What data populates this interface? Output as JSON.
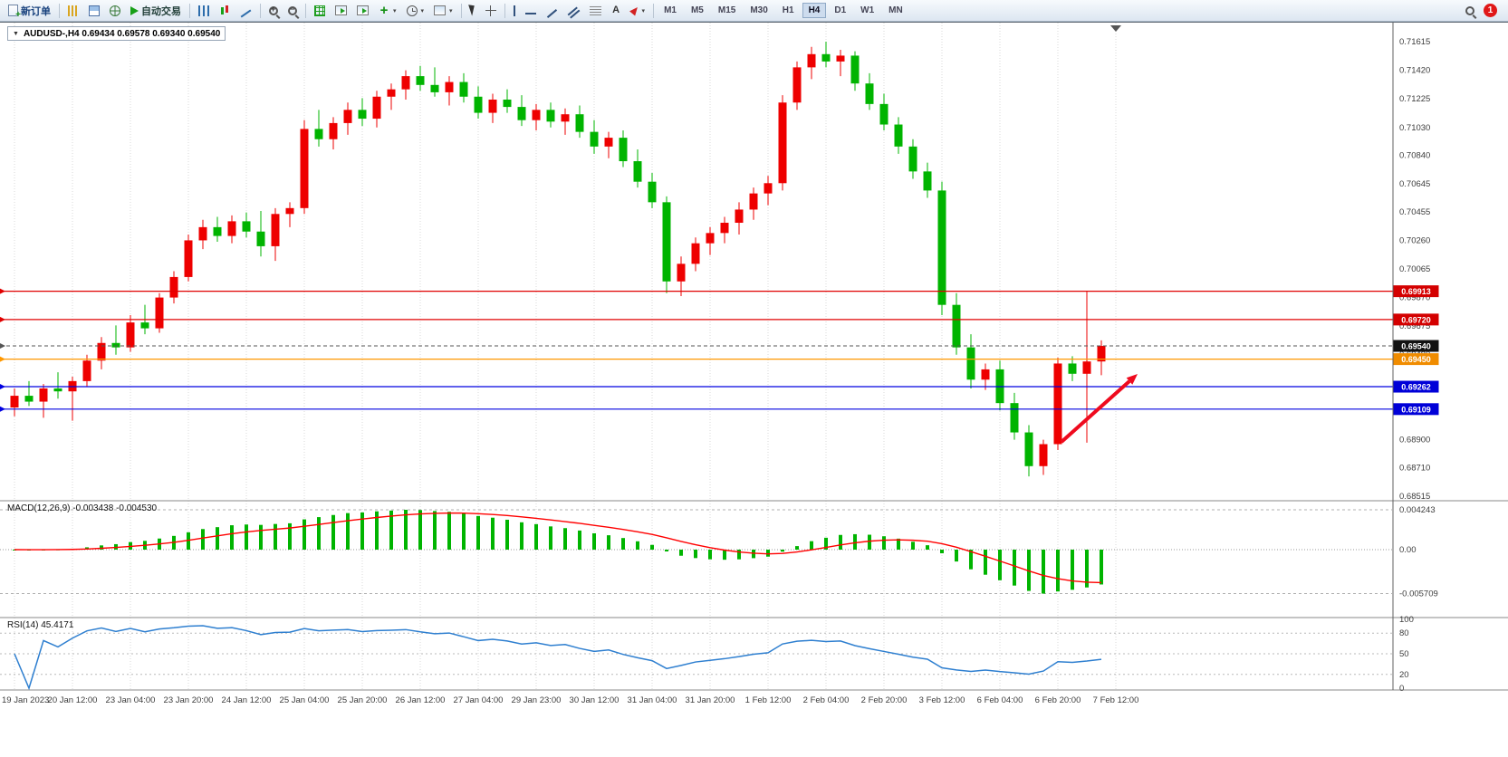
{
  "toolbar": {
    "new_order": "新订单",
    "auto_trading": "自动交易",
    "timeframe_labels": [
      "M1",
      "M5",
      "M15",
      "M30",
      "H1",
      "H4",
      "D1",
      "W1",
      "MN"
    ],
    "active_timeframe": "H4",
    "notification_count": "1"
  },
  "chart": {
    "symbol_header": "AUDUSD-,H4 0.69434 0.69578 0.69340 0.69540",
    "symbol": "AUDUSD-",
    "timeframe": "H4",
    "ohlc": {
      "open": "0.69434",
      "high": "0.69578",
      "low": "0.69340",
      "close": "0.69540"
    },
    "axis_labels": [
      "0.71615",
      "0.71420",
      "0.71225",
      "0.71030",
      "0.70840",
      "0.70645",
      "0.70455",
      "0.70260",
      "0.70065",
      "0.69870",
      "0.69675",
      "0.69480",
      "0.68900",
      "0.68710",
      "0.68515"
    ],
    "price_lines": [
      {
        "label": "0.69913",
        "value": 0.69913,
        "color": "#e00000",
        "badge": "#d40000",
        "current": false
      },
      {
        "label": "0.69720",
        "value": 0.6972,
        "color": "#e00000",
        "badge": "#d40000",
        "current": false
      },
      {
        "label": "0.69540",
        "value": 0.6954,
        "color": "#555555",
        "badge": "#111111",
        "current": true
      },
      {
        "label": "0.69450",
        "value": 0.6945,
        "color": "#ff9800",
        "badge": "#f08c00",
        "current": false
      },
      {
        "label": "0.69262",
        "value": 0.69262,
        "color": "#0000e0",
        "badge": "#0000d8",
        "current": false
      },
      {
        "label": "0.69109",
        "value": 0.69109,
        "color": "#0000e0",
        "badge": "#0000d8",
        "current": false
      }
    ]
  },
  "chart_data": {
    "type": "candlestick",
    "title": "AUDUSD- H4",
    "ylim": [
      0.68484,
      0.71745
    ],
    "candles_ohlc": [
      [
        0.6912,
        0.6925,
        0.6906,
        0.692
      ],
      [
        0.692,
        0.693,
        0.6913,
        0.6916
      ],
      [
        0.6916,
        0.6928,
        0.6905,
        0.6925
      ],
      [
        0.6925,
        0.6936,
        0.6918,
        0.6923
      ],
      [
        0.6923,
        0.6933,
        0.6903,
        0.693
      ],
      [
        0.693,
        0.6948,
        0.6926,
        0.6944
      ],
      [
        0.6944,
        0.696,
        0.6938,
        0.6956
      ],
      [
        0.6956,
        0.6968,
        0.6948,
        0.6953
      ],
      [
        0.6953,
        0.6975,
        0.695,
        0.697
      ],
      [
        0.697,
        0.6982,
        0.6962,
        0.6966
      ],
      [
        0.6966,
        0.699,
        0.6963,
        0.6987
      ],
      [
        0.6987,
        0.7005,
        0.6983,
        0.7001
      ],
      [
        0.7001,
        0.703,
        0.6998,
        0.7026
      ],
      [
        0.7026,
        0.704,
        0.702,
        0.7035
      ],
      [
        0.7035,
        0.7042,
        0.7025,
        0.7029
      ],
      [
        0.7029,
        0.7043,
        0.7024,
        0.7039
      ],
      [
        0.7039,
        0.7045,
        0.7028,
        0.7032
      ],
      [
        0.7032,
        0.7046,
        0.7015,
        0.7022
      ],
      [
        0.7022,
        0.7048,
        0.7012,
        0.7044
      ],
      [
        0.7044,
        0.7052,
        0.7035,
        0.7048
      ],
      [
        0.7048,
        0.7108,
        0.7044,
        0.7102
      ],
      [
        0.7102,
        0.7115,
        0.709,
        0.7095
      ],
      [
        0.7095,
        0.711,
        0.7088,
        0.7106
      ],
      [
        0.7106,
        0.712,
        0.7098,
        0.7115
      ],
      [
        0.7115,
        0.7123,
        0.7104,
        0.7109
      ],
      [
        0.7109,
        0.7128,
        0.7103,
        0.7124
      ],
      [
        0.7124,
        0.7133,
        0.7115,
        0.7129
      ],
      [
        0.7129,
        0.7142,
        0.7122,
        0.7138
      ],
      [
        0.7138,
        0.7145,
        0.7128,
        0.7132
      ],
      [
        0.7132,
        0.7144,
        0.7124,
        0.7127
      ],
      [
        0.7127,
        0.7138,
        0.7118,
        0.7134
      ],
      [
        0.7134,
        0.714,
        0.712,
        0.7124
      ],
      [
        0.7124,
        0.7131,
        0.7109,
        0.7113
      ],
      [
        0.7113,
        0.7126,
        0.7106,
        0.7122
      ],
      [
        0.7122,
        0.7129,
        0.7113,
        0.7117
      ],
      [
        0.7117,
        0.7125,
        0.7104,
        0.7108
      ],
      [
        0.7108,
        0.7119,
        0.7101,
        0.7115
      ],
      [
        0.7115,
        0.712,
        0.7103,
        0.7107
      ],
      [
        0.7107,
        0.7116,
        0.7098,
        0.7112
      ],
      [
        0.7112,
        0.7118,
        0.7096,
        0.71
      ],
      [
        0.71,
        0.7108,
        0.7085,
        0.709
      ],
      [
        0.709,
        0.71,
        0.7082,
        0.7096
      ],
      [
        0.7096,
        0.7101,
        0.7076,
        0.708
      ],
      [
        0.708,
        0.7088,
        0.7062,
        0.7066
      ],
      [
        0.7066,
        0.7072,
        0.7048,
        0.7052
      ],
      [
        0.7052,
        0.7056,
        0.699,
        0.6998
      ],
      [
        0.6998,
        0.7015,
        0.6988,
        0.701
      ],
      [
        0.701,
        0.7028,
        0.7005,
        0.7024
      ],
      [
        0.7024,
        0.7035,
        0.7016,
        0.7031
      ],
      [
        0.7031,
        0.7042,
        0.7024,
        0.7038
      ],
      [
        0.7038,
        0.7052,
        0.703,
        0.7047
      ],
      [
        0.7047,
        0.7062,
        0.704,
        0.7058
      ],
      [
        0.7058,
        0.707,
        0.705,
        0.7065
      ],
      [
        0.7065,
        0.7125,
        0.706,
        0.712
      ],
      [
        0.712,
        0.7148,
        0.7115,
        0.7144
      ],
      [
        0.7144,
        0.7158,
        0.7136,
        0.7153
      ],
      [
        0.7153,
        0.71615,
        0.7144,
        0.7148
      ],
      [
        0.7148,
        0.7156,
        0.7138,
        0.7152
      ],
      [
        0.7152,
        0.7155,
        0.7128,
        0.7133
      ],
      [
        0.7133,
        0.714,
        0.7115,
        0.7119
      ],
      [
        0.7119,
        0.7126,
        0.7101,
        0.7105
      ],
      [
        0.7105,
        0.711,
        0.7085,
        0.709
      ],
      [
        0.709,
        0.7095,
        0.7068,
        0.7073
      ],
      [
        0.7073,
        0.7079,
        0.7055,
        0.706
      ],
      [
        0.706,
        0.7066,
        0.6975,
        0.6982
      ],
      [
        0.6982,
        0.699,
        0.6948,
        0.6953
      ],
      [
        0.6953,
        0.6962,
        0.6925,
        0.6931
      ],
      [
        0.6931,
        0.6942,
        0.6924,
        0.6938
      ],
      [
        0.6938,
        0.6944,
        0.691,
        0.6915
      ],
      [
        0.6915,
        0.6922,
        0.689,
        0.6895
      ],
      [
        0.6895,
        0.69,
        0.6865,
        0.6872
      ],
      [
        0.6872,
        0.689,
        0.6866,
        0.6887
      ],
      [
        0.6887,
        0.6946,
        0.6883,
        0.6942
      ],
      [
        0.6942,
        0.6947,
        0.693,
        0.6935
      ],
      [
        0.6935,
        0.6991,
        0.6888,
        0.69434
      ],
      [
        0.69434,
        0.69578,
        0.6934,
        0.6954
      ]
    ]
  },
  "indicators": {
    "macd": {
      "label": "MACD(12,26,9) -0.003438 -0.004530",
      "fast": 12,
      "slow": 26,
      "signal": 9,
      "values_text": "-0.003438 -0.004530",
      "axis_labels": [
        "0.004243",
        "0.00",
        "-0.005709"
      ]
    },
    "rsi": {
      "label": "RSI(14) 45.4171",
      "period": 14,
      "value": "45.4171",
      "axis_labels": [
        "100",
        "80",
        "50",
        "20",
        "0"
      ],
      "levels": [
        80,
        50,
        20
      ]
    }
  },
  "time_axis": [
    "19 Jan 2023",
    "20 Jan 12:00",
    "23 Jan 04:00",
    "23 Jan 20:00",
    "24 Jan 12:00",
    "25 Jan 04:00",
    "25 Jan 20:00",
    "26 Jan 12:00",
    "27 Jan 04:00",
    "29 Jan 23:00",
    "30 Jan 12:00",
    "31 Jan 04:00",
    "31 Jan 20:00",
    "1 Feb 12:00",
    "2 Feb 04:00",
    "2 Feb 20:00",
    "3 Feb 12:00",
    "6 Feb 04:00",
    "6 Feb 20:00",
    "7 Feb 12:00"
  ],
  "annotations": {
    "trend_arrow": {
      "type": "arrow",
      "color": "#ef0a1e",
      "direction": "up-right"
    }
  },
  "colors": {
    "bull": "#ee0000",
    "bear": "#00b400",
    "macd_hist": "#00b400",
    "macd_signal": "#ff0000",
    "rsi_line": "#2e7fd0",
    "grid": "#d9d9d9",
    "separator": "#8a8a8a",
    "axis_text": "#3c3c3c"
  }
}
